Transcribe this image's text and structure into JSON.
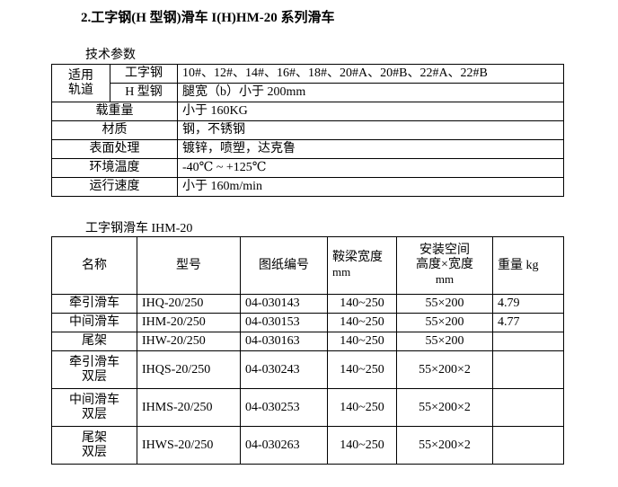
{
  "title": "2.工字钢(H 型钢)滑车 I(H)HM-20 系列滑车",
  "specs": {
    "caption": "技术参数",
    "rail_label": "适用轨道",
    "rail_label_1": "适用",
    "rail_label_2": "轨道",
    "rows": [
      {
        "label": "工字钢",
        "value": "10#、12#、14#、16#、18#、20#A、20#B、22#A、22#B"
      },
      {
        "label": "H 型钢",
        "value": "腿宽（b）小于 200mm"
      },
      {
        "label": "载重量",
        "value": "小于 160KG"
      },
      {
        "label": "材质",
        "value": "钢，不锈钢"
      },
      {
        "label": "表面处理",
        "value": "镀锌，喷塑，达克鲁"
      },
      {
        "label": "环境温度",
        "value": "-40℃ ~ +125℃"
      },
      {
        "label": "运行速度",
        "value": "小于 160m/min"
      }
    ]
  },
  "models": {
    "caption": "工字钢滑车 IHM-20",
    "headers": [
      "名称",
      "型号",
      "图纸编号",
      "鞍梁宽度",
      "mm",
      "安装空间",
      "高度×宽度",
      "mm",
      "重量 kg"
    ],
    "rows": [
      {
        "name": "牵引滑车",
        "name2": "",
        "model": "IHQ-20/250",
        "drawing": "04-030143",
        "width": "140~250",
        "space": "55×200",
        "weight": "4.79"
      },
      {
        "name": "中间滑车",
        "name2": "",
        "model": "IHM-20/250",
        "drawing": "04-030153",
        "width": "140~250",
        "space": "55×200",
        "weight": "4.77"
      },
      {
        "name": "尾架",
        "name2": "",
        "model": "IHW-20/250",
        "drawing": "04-030163",
        "width": "140~250",
        "space": "55×200",
        "weight": ""
      },
      {
        "name": "牵引滑车",
        "name2": "双层",
        "model": "IHQS-20/250",
        "drawing": "04-030243",
        "width": "140~250",
        "space": "55×200×2",
        "weight": ""
      },
      {
        "name": "中间滑车",
        "name2": "双层",
        "model": "IHMS-20/250",
        "drawing": "04-030253",
        "width": "140~250",
        "space": "55×200×2",
        "weight": ""
      },
      {
        "name": "尾架",
        "name2": "双层",
        "model": "IHWS-20/250",
        "drawing": "04-030263",
        "width": "140~250",
        "space": "55×200×2",
        "weight": ""
      }
    ]
  }
}
